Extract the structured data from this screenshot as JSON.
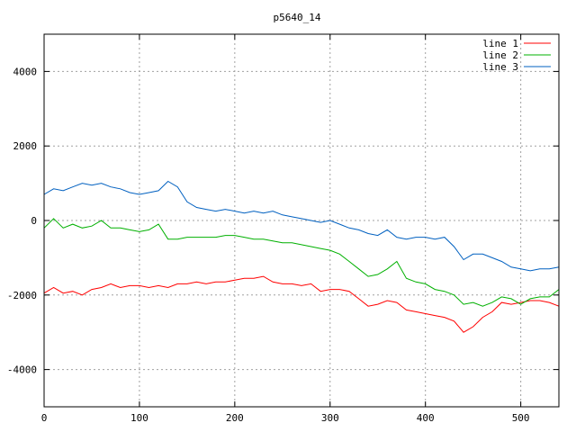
{
  "chart_data": {
    "type": "line",
    "title": "p5640_14",
    "xlabel": "",
    "ylabel": "",
    "xlim": [
      0,
      540
    ],
    "ylim": [
      -5000,
      5000
    ],
    "xticks": [
      0,
      100,
      200,
      300,
      400,
      500
    ],
    "yticks": [
      -4000,
      -2000,
      0,
      2000,
      4000
    ],
    "grid": true,
    "legend_position": "top-right",
    "series": [
      {
        "name": "line 1",
        "color": "#ff0000",
        "x": [
          0,
          10,
          20,
          30,
          40,
          50,
          60,
          70,
          80,
          90,
          100,
          110,
          120,
          130,
          140,
          150,
          160,
          170,
          180,
          190,
          200,
          210,
          220,
          230,
          240,
          250,
          260,
          270,
          280,
          290,
          300,
          310,
          320,
          330,
          340,
          350,
          360,
          370,
          380,
          390,
          400,
          410,
          420,
          430,
          440,
          450,
          460,
          470,
          480,
          490,
          500,
          510,
          520,
          530,
          540
        ],
        "values": [
          -1950,
          -1800,
          -1950,
          -1900,
          -2000,
          -1850,
          -1800,
          -1700,
          -1800,
          -1750,
          -1750,
          -1800,
          -1750,
          -1800,
          -1700,
          -1700,
          -1650,
          -1700,
          -1650,
          -1650,
          -1600,
          -1550,
          -1550,
          -1500,
          -1650,
          -1700,
          -1700,
          -1750,
          -1700,
          -1900,
          -1850,
          -1850,
          -1900,
          -2100,
          -2300,
          -2250,
          -2150,
          -2200,
          -2400,
          -2450,
          -2500,
          -2550,
          -2600,
          -2700,
          -3000,
          -2850,
          -2600,
          -2450,
          -2200,
          -2250,
          -2200,
          -2150,
          -2150,
          -2200,
          -2300
        ]
      },
      {
        "name": "line 2",
        "color": "#00b000",
        "x": [
          0,
          10,
          20,
          30,
          40,
          50,
          60,
          70,
          80,
          90,
          100,
          110,
          120,
          130,
          140,
          150,
          160,
          170,
          180,
          190,
          200,
          210,
          220,
          230,
          240,
          250,
          260,
          270,
          280,
          290,
          300,
          310,
          320,
          330,
          340,
          350,
          360,
          370,
          380,
          390,
          400,
          410,
          420,
          430,
          440,
          450,
          460,
          470,
          480,
          490,
          500,
          510,
          520,
          530,
          540
        ],
        "values": [
          -200,
          50,
          -200,
          -100,
          -200,
          -150,
          0,
          -200,
          -200,
          -250,
          -300,
          -250,
          -100,
          -500,
          -500,
          -450,
          -450,
          -450,
          -450,
          -400,
          -400,
          -450,
          -500,
          -500,
          -550,
          -600,
          -600,
          -650,
          -700,
          -750,
          -800,
          -900,
          -1100,
          -1300,
          -1500,
          -1450,
          -1300,
          -1100,
          -1550,
          -1650,
          -1700,
          -1850,
          -1900,
          -2000,
          -2250,
          -2200,
          -2300,
          -2200,
          -2050,
          -2100,
          -2250,
          -2100,
          -2050,
          -2050,
          -1850
        ]
      },
      {
        "name": "line 3",
        "color": "#0060c0",
        "x": [
          0,
          10,
          20,
          30,
          40,
          50,
          60,
          70,
          80,
          90,
          100,
          110,
          120,
          130,
          140,
          150,
          160,
          170,
          180,
          190,
          200,
          210,
          220,
          230,
          240,
          250,
          260,
          270,
          280,
          290,
          300,
          310,
          320,
          330,
          340,
          350,
          360,
          370,
          380,
          390,
          400,
          410,
          420,
          430,
          440,
          450,
          460,
          470,
          480,
          490,
          500,
          510,
          520,
          530,
          540
        ],
        "values": [
          700,
          850,
          800,
          900,
          1000,
          950,
          1000,
          900,
          850,
          750,
          700,
          750,
          800,
          1050,
          900,
          500,
          350,
          300,
          250,
          300,
          250,
          200,
          250,
          200,
          250,
          150,
          100,
          50,
          0,
          -50,
          0,
          -100,
          -200,
          -250,
          -350,
          -400,
          -250,
          -450,
          -500,
          -450,
          -450,
          -500,
          -450,
          -700,
          -1050,
          -900,
          -900,
          -1000,
          -1100,
          -1250,
          -1300,
          -1350,
          -1300,
          -1300,
          -1250
        ]
      }
    ]
  }
}
